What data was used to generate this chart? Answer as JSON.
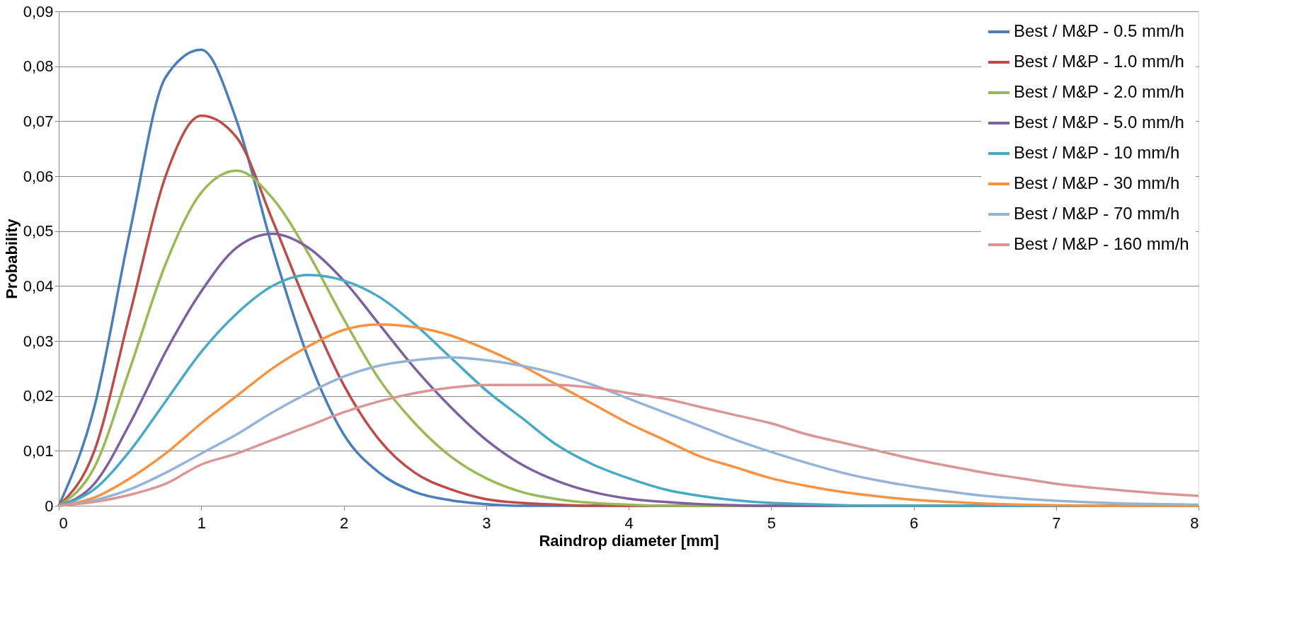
{
  "chart_data": {
    "type": "line",
    "xlabel": "Raindrop diameter [mm]",
    "ylabel": "Probability",
    "x": [
      0,
      0.25,
      0.5,
      0.75,
      1,
      1.25,
      1.5,
      1.75,
      2,
      2.25,
      2.5,
      2.75,
      3,
      3.25,
      3.5,
      3.75,
      4,
      4.25,
      4.5,
      4.75,
      5,
      5.25,
      5.5,
      5.75,
      6,
      6.25,
      6.5,
      6.75,
      7,
      7.25,
      7.5,
      7.75,
      8
    ],
    "xlim": [
      0,
      8
    ],
    "xticks": [
      0,
      1,
      2,
      3,
      4,
      5,
      6,
      7,
      8
    ],
    "ylim": [
      0,
      0.09
    ],
    "yticks": [
      0,
      {
        "value": 0.01,
        "label": "0,01"
      },
      {
        "value": 0.02,
        "label": "0,02"
      },
      {
        "value": 0.03,
        "label": "0,03"
      },
      {
        "value": 0.04,
        "label": "0,04"
      },
      {
        "value": 0.05,
        "label": "0,05"
      },
      {
        "value": 0.06,
        "label": "0,06"
      },
      {
        "value": 0.07,
        "label": "0,07"
      },
      {
        "value": 0.08,
        "label": "0,08"
      },
      {
        "value": 0.09,
        "label": "0,09"
      }
    ],
    "grid": "y",
    "legend": "top right",
    "marker": "none",
    "line_style": "solid",
    "series": [
      {
        "name": "Best / M&P - 0.5 mm/h",
        "color": "#4a7ebb",
        "values": [
          0,
          0.018,
          0.05,
          0.078,
          0.083,
          0.07,
          0.047,
          0.027,
          0.013,
          0.006,
          0.0025,
          0.001,
          0.0003,
          0,
          0,
          0,
          0,
          0,
          0,
          0,
          0,
          0,
          0,
          0,
          0,
          0,
          0,
          0,
          0,
          0,
          0,
          0,
          0
        ]
      },
      {
        "name": "Best / M&P - 1.0 mm/h",
        "color": "#be4b48",
        "values": [
          0,
          0.01,
          0.035,
          0.06,
          0.071,
          0.067,
          0.052,
          0.036,
          0.022,
          0.012,
          0.006,
          0.003,
          0.0012,
          0.0005,
          0.0002,
          0,
          0,
          0,
          0,
          0,
          0,
          0,
          0,
          0,
          0,
          0,
          0,
          0,
          0,
          0,
          0,
          0,
          0
        ]
      },
      {
        "name": "Best / M&P - 2.0 mm/h",
        "color": "#98b954",
        "values": [
          0,
          0.007,
          0.025,
          0.044,
          0.057,
          0.061,
          0.056,
          0.046,
          0.034,
          0.023,
          0.015,
          0.009,
          0.005,
          0.0025,
          0.0012,
          0.0005,
          0.0002,
          0,
          0,
          0,
          0,
          0,
          0,
          0,
          0,
          0,
          0,
          0,
          0,
          0,
          0,
          0,
          0
        ]
      },
      {
        "name": "Best / M&P - 5.0 mm/h",
        "color": "#7d60a0",
        "values": [
          0,
          0.004,
          0.015,
          0.028,
          0.039,
          0.047,
          0.0495,
          0.047,
          0.041,
          0.033,
          0.025,
          0.018,
          0.012,
          0.0075,
          0.0045,
          0.0025,
          0.0013,
          0.0007,
          0.0003,
          0.0001,
          0,
          0,
          0,
          0,
          0,
          0,
          0,
          0,
          0,
          0,
          0,
          0,
          0
        ]
      },
      {
        "name": "Best / M&P - 10 mm/h",
        "color": "#46aac5",
        "values": [
          0,
          0.003,
          0.01,
          0.019,
          0.028,
          0.035,
          0.04,
          0.042,
          0.041,
          0.038,
          0.033,
          0.027,
          0.021,
          0.016,
          0.011,
          0.0075,
          0.005,
          0.003,
          0.0018,
          0.001,
          0.0005,
          0.0003,
          0.0001,
          0,
          0,
          0,
          0,
          0,
          0,
          0,
          0,
          0,
          0
        ]
      },
      {
        "name": "Best / M&P - 30 mm/h",
        "color": "#f69240",
        "values": [
          0,
          0.0015,
          0.005,
          0.0095,
          0.015,
          0.02,
          0.025,
          0.029,
          0.032,
          0.033,
          0.0325,
          0.031,
          0.0285,
          0.0255,
          0.022,
          0.0185,
          0.015,
          0.012,
          0.009,
          0.007,
          0.005,
          0.0036,
          0.0025,
          0.0017,
          0.0011,
          0.0007,
          0.0004,
          0.0002,
          0.0001,
          0,
          0,
          0,
          0
        ]
      },
      {
        "name": "Best / M&P - 70 mm/h",
        "color": "#95b3d7",
        "values": [
          0,
          0.001,
          0.003,
          0.006,
          0.0095,
          0.013,
          0.017,
          0.0205,
          0.0235,
          0.0255,
          0.0265,
          0.027,
          0.0265,
          0.0255,
          0.024,
          0.022,
          0.0195,
          0.017,
          0.0145,
          0.012,
          0.0098,
          0.0078,
          0.006,
          0.0046,
          0.0035,
          0.0026,
          0.0018,
          0.0013,
          0.0009,
          0.0006,
          0.0004,
          0.0003,
          0.0002
        ]
      },
      {
        "name": "Best / M&P - 160 mm/h",
        "color": "#d99694",
        "values": [
          0,
          0.0007,
          0.002,
          0.004,
          0.0075,
          0.0095,
          0.012,
          0.0145,
          0.017,
          0.019,
          0.0205,
          0.0215,
          0.022,
          0.022,
          0.022,
          0.0215,
          0.0205,
          0.0195,
          0.018,
          0.0165,
          0.015,
          0.013,
          0.0115,
          0.01,
          0.0085,
          0.0072,
          0.006,
          0.005,
          0.004,
          0.0033,
          0.0027,
          0.0022,
          0.0018
        ]
      }
    ]
  }
}
